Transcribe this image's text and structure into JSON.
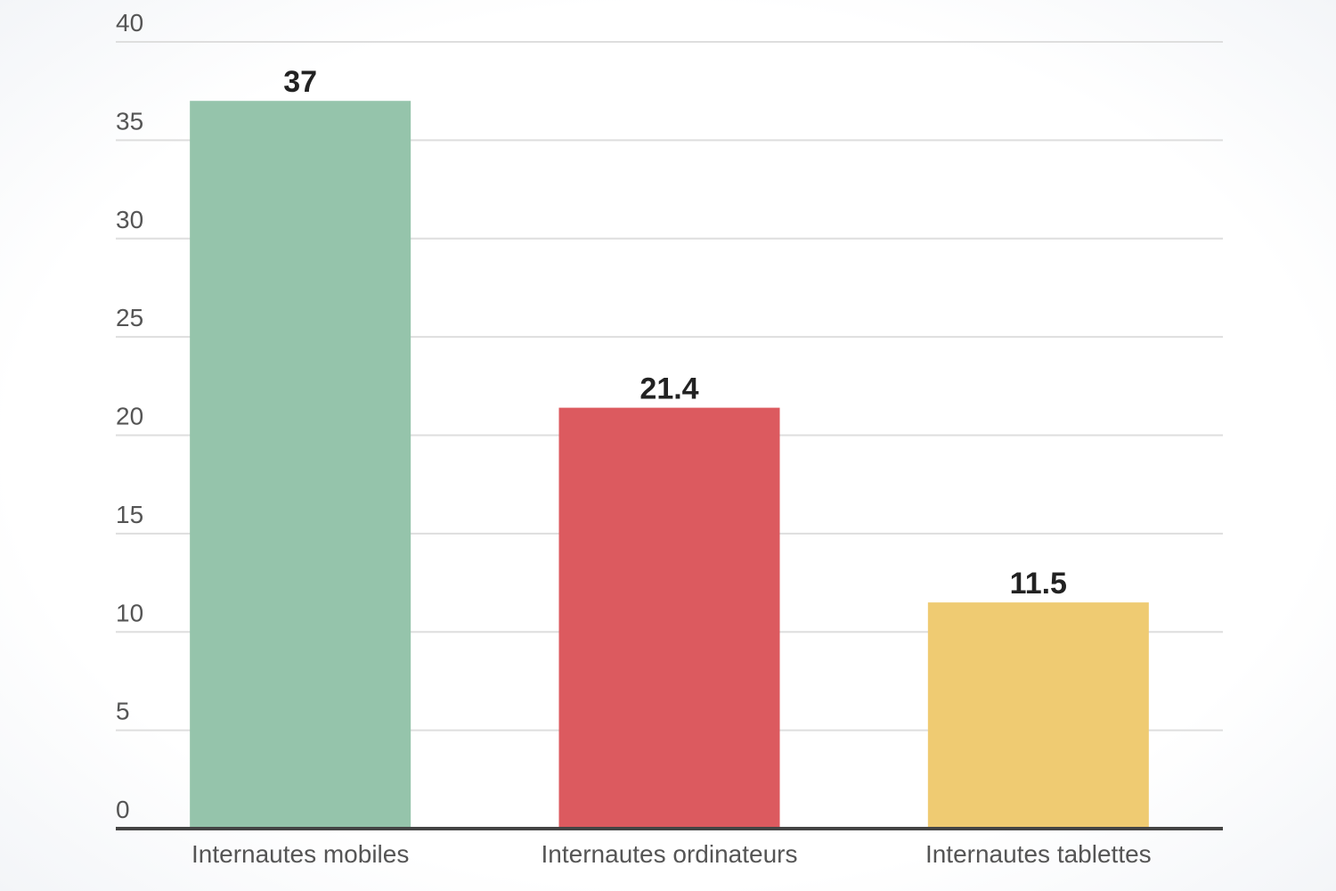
{
  "chart_data": {
    "type": "bar",
    "categories": [
      "Internautes mobiles",
      "Internautes ordinateurs",
      "Internautes tablettes"
    ],
    "values": [
      37,
      21.4,
      11.5
    ],
    "value_labels": [
      "37",
      "21.4",
      "11.5"
    ],
    "colors": [
      "#95c4ab",
      "#dc5a5f",
      "#efcb72"
    ],
    "title": "",
    "xlabel": "",
    "ylabel": "",
    "ylim": [
      0,
      40
    ],
    "yticks": [
      0,
      5,
      10,
      15,
      20,
      25,
      30,
      35,
      40
    ],
    "grid": true,
    "legend": "none"
  }
}
